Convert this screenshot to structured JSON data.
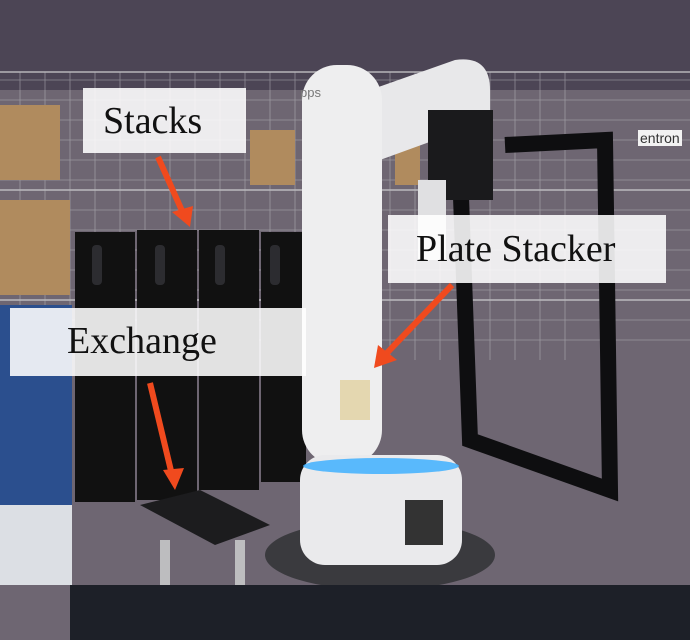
{
  "labels": {
    "stacks": "Stacks",
    "plate_stacker": "Plate Stacker",
    "exchange": "Exchange"
  },
  "colors": {
    "arrow": "#f04a1e",
    "led": "#3fb0ff"
  },
  "photo_text": {
    "column_brand": "pps",
    "sign": "entron"
  }
}
